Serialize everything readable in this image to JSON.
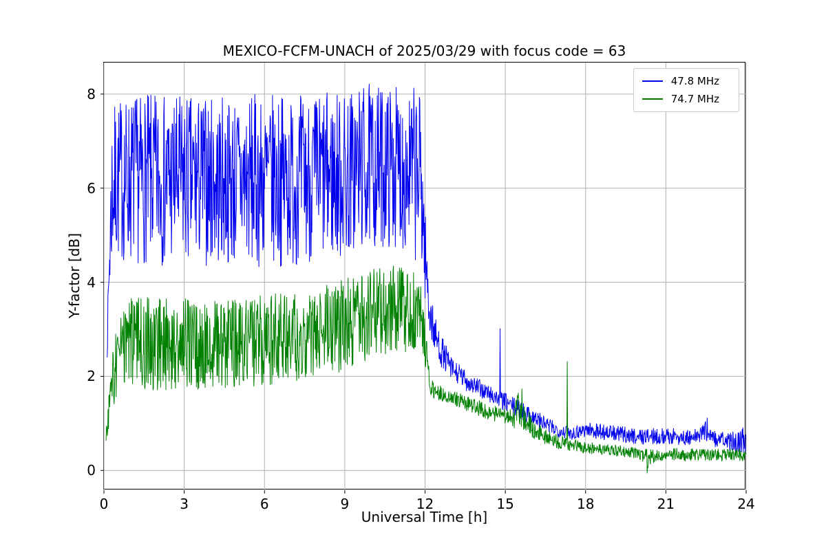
{
  "figure": {
    "background": "#ffffff"
  },
  "chart_data": {
    "type": "line",
    "title": "MEXICO-FCFM-UNACH of 2025/03/29 with focus code = 63",
    "xlabel": "Universal Time [h]",
    "ylabel": "Y-factor [dB]",
    "xlim": [
      0,
      24
    ],
    "ylim": [
      -0.42,
      8.67
    ],
    "xticks": [
      0,
      3,
      6,
      9,
      12,
      15,
      18,
      21,
      24
    ],
    "yticks": [
      0,
      2,
      4,
      6,
      8
    ],
    "grid": true,
    "grid_color": "#b0b0b0",
    "axis_color": "#000000",
    "legend_position": "upper right",
    "noise_seed": 7,
    "sample_step_hours": 0.015,
    "series": [
      {
        "name": "47.8 MHz",
        "color": "#0000ee",
        "envelope": [
          [
            0.12,
            2.4,
            2.7
          ],
          [
            0.2,
            3.3,
            5.5
          ],
          [
            0.3,
            4.3,
            7.7
          ],
          [
            0.5,
            4.4,
            7.9
          ],
          [
            1.0,
            4.4,
            8.0
          ],
          [
            2.0,
            4.35,
            8.0
          ],
          [
            3.0,
            4.3,
            8.0
          ],
          [
            4.0,
            4.35,
            7.95
          ],
          [
            5.0,
            4.3,
            8.0
          ],
          [
            6.0,
            4.3,
            8.0
          ],
          [
            7.0,
            4.35,
            8.0
          ],
          [
            8.0,
            4.4,
            8.05
          ],
          [
            9.0,
            4.45,
            8.1
          ],
          [
            9.6,
            4.6,
            8.25
          ],
          [
            10.2,
            4.7,
            8.2
          ],
          [
            10.8,
            4.75,
            8.2
          ],
          [
            11.4,
            4.6,
            8.15
          ],
          [
            11.85,
            4.35,
            8.15
          ],
          [
            12.0,
            3.6,
            5.6
          ],
          [
            12.15,
            2.9,
            4.1
          ],
          [
            12.35,
            2.5,
            3.3
          ],
          [
            12.6,
            2.2,
            2.9
          ],
          [
            13.0,
            1.9,
            2.4
          ],
          [
            13.5,
            1.7,
            2.15
          ],
          [
            14.0,
            1.55,
            1.95
          ],
          [
            14.5,
            1.4,
            1.8
          ],
          [
            15.0,
            1.25,
            1.65
          ],
          [
            15.5,
            1.1,
            1.5
          ],
          [
            16.0,
            0.95,
            1.35
          ],
          [
            16.5,
            0.8,
            1.15
          ],
          [
            17.0,
            0.7,
            1.0
          ],
          [
            17.5,
            0.65,
            0.95
          ],
          [
            18.0,
            0.7,
            1.05
          ],
          [
            18.6,
            0.65,
            1.0
          ],
          [
            19.2,
            0.6,
            0.95
          ],
          [
            20.0,
            0.55,
            0.9
          ],
          [
            20.8,
            0.55,
            0.9
          ],
          [
            21.4,
            0.55,
            0.9
          ],
          [
            22.0,
            0.5,
            0.85
          ],
          [
            22.6,
            0.6,
            1.15
          ],
          [
            22.8,
            0.5,
            0.85
          ],
          [
            23.4,
            0.4,
            0.8
          ],
          [
            24.0,
            0.35,
            0.95
          ]
        ],
        "spikes": [
          [
            14.8,
            3.02
          ]
        ]
      },
      {
        "name": "74.7 MHz",
        "color": "#008000",
        "envelope": [
          [
            0.08,
            0.6,
            0.85
          ],
          [
            0.2,
            0.9,
            1.8
          ],
          [
            0.35,
            1.3,
            2.7
          ],
          [
            0.6,
            1.65,
            3.4
          ],
          [
            1.0,
            1.7,
            3.7
          ],
          [
            2.0,
            1.7,
            3.75
          ],
          [
            3.0,
            1.7,
            3.7
          ],
          [
            4.0,
            1.7,
            3.65
          ],
          [
            5.0,
            1.75,
            3.7
          ],
          [
            6.0,
            1.8,
            3.75
          ],
          [
            7.0,
            1.85,
            3.8
          ],
          [
            8.0,
            2.0,
            3.95
          ],
          [
            9.0,
            2.1,
            4.1
          ],
          [
            9.8,
            2.3,
            4.25
          ],
          [
            10.5,
            2.45,
            4.4
          ],
          [
            11.2,
            2.5,
            4.3
          ],
          [
            11.8,
            2.4,
            4.2
          ],
          [
            12.0,
            2.0,
            3.2
          ],
          [
            12.2,
            1.6,
            2.1
          ],
          [
            12.4,
            1.5,
            1.85
          ],
          [
            13.0,
            1.4,
            1.7
          ],
          [
            13.6,
            1.25,
            1.6
          ],
          [
            14.2,
            1.1,
            1.45
          ],
          [
            14.8,
            1.0,
            1.35
          ],
          [
            15.3,
            0.9,
            1.3
          ],
          [
            15.55,
            0.9,
            1.85
          ],
          [
            15.75,
            0.8,
            1.55
          ],
          [
            16.0,
            0.7,
            1.1
          ],
          [
            16.5,
            0.55,
            0.9
          ],
          [
            17.0,
            0.45,
            0.75
          ],
          [
            17.6,
            0.4,
            0.65
          ],
          [
            18.2,
            0.35,
            0.6
          ],
          [
            19.0,
            0.3,
            0.55
          ],
          [
            20.0,
            0.25,
            0.5
          ],
          [
            20.35,
            0.05,
            0.45
          ],
          [
            20.7,
            0.2,
            0.45
          ],
          [
            21.5,
            0.2,
            0.48
          ],
          [
            22.3,
            0.2,
            0.45
          ],
          [
            23.0,
            0.2,
            0.48
          ],
          [
            24.0,
            0.2,
            0.45
          ]
        ],
        "spikes": [
          [
            17.32,
            2.32
          ],
          [
            20.3,
            -0.06
          ]
        ]
      }
    ]
  }
}
